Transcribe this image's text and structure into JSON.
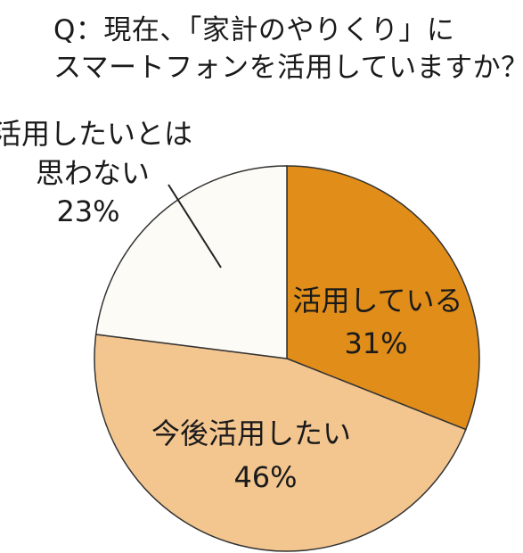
{
  "title_lines": [
    "Q：現在、「家計のやりくり」に",
    "スマートフォンを活用していますか？"
  ],
  "chart_data": {
    "type": "pie",
    "slices": [
      {
        "label": "活用している",
        "value": 31,
        "value_label": "31%",
        "color": "#e08d1a"
      },
      {
        "label": "今後活用したい",
        "value": 46,
        "value_label": "46%",
        "color": "#f3c690"
      },
      {
        "label_lines": [
          "活用したいとは",
          "思わない"
        ],
        "value": 23,
        "value_label": "23%",
        "color": "#fdfbf6"
      }
    ],
    "start_angle_deg": 0,
    "direction": "clockwise",
    "border_color": "#333333"
  }
}
